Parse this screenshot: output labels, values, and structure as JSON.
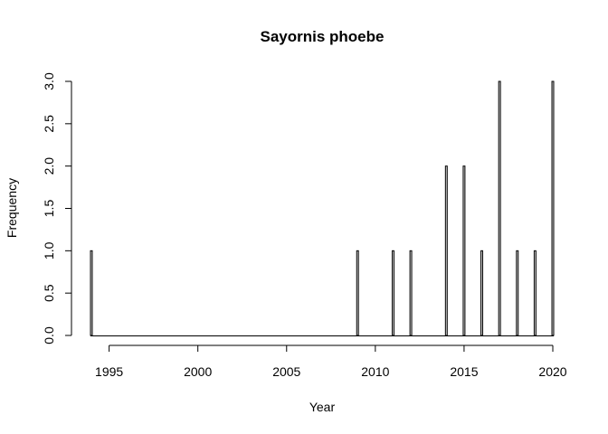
{
  "chart_data": {
    "type": "bar",
    "title": "Sayornis phoebe",
    "xlabel": "Year",
    "ylabel": "Frequency",
    "x": [
      1994,
      2009,
      2011,
      2012,
      2014,
      2015,
      2016,
      2017,
      2018,
      2019,
      2020
    ],
    "values": [
      1,
      1,
      1,
      1,
      2,
      2,
      1,
      3,
      1,
      1,
      3
    ],
    "xlim": [
      1994,
      2020
    ],
    "ylim": [
      0,
      3
    ],
    "xticks": [
      "1995",
      "2000",
      "2005",
      "2010",
      "2015",
      "2020"
    ],
    "yticks": [
      "0.0",
      "0.5",
      "1.0",
      "1.5",
      "2.0",
      "2.5",
      "3.0"
    ],
    "grid": false,
    "bar_fill": "#d3d3d3",
    "bar_stroke": "#000000"
  }
}
